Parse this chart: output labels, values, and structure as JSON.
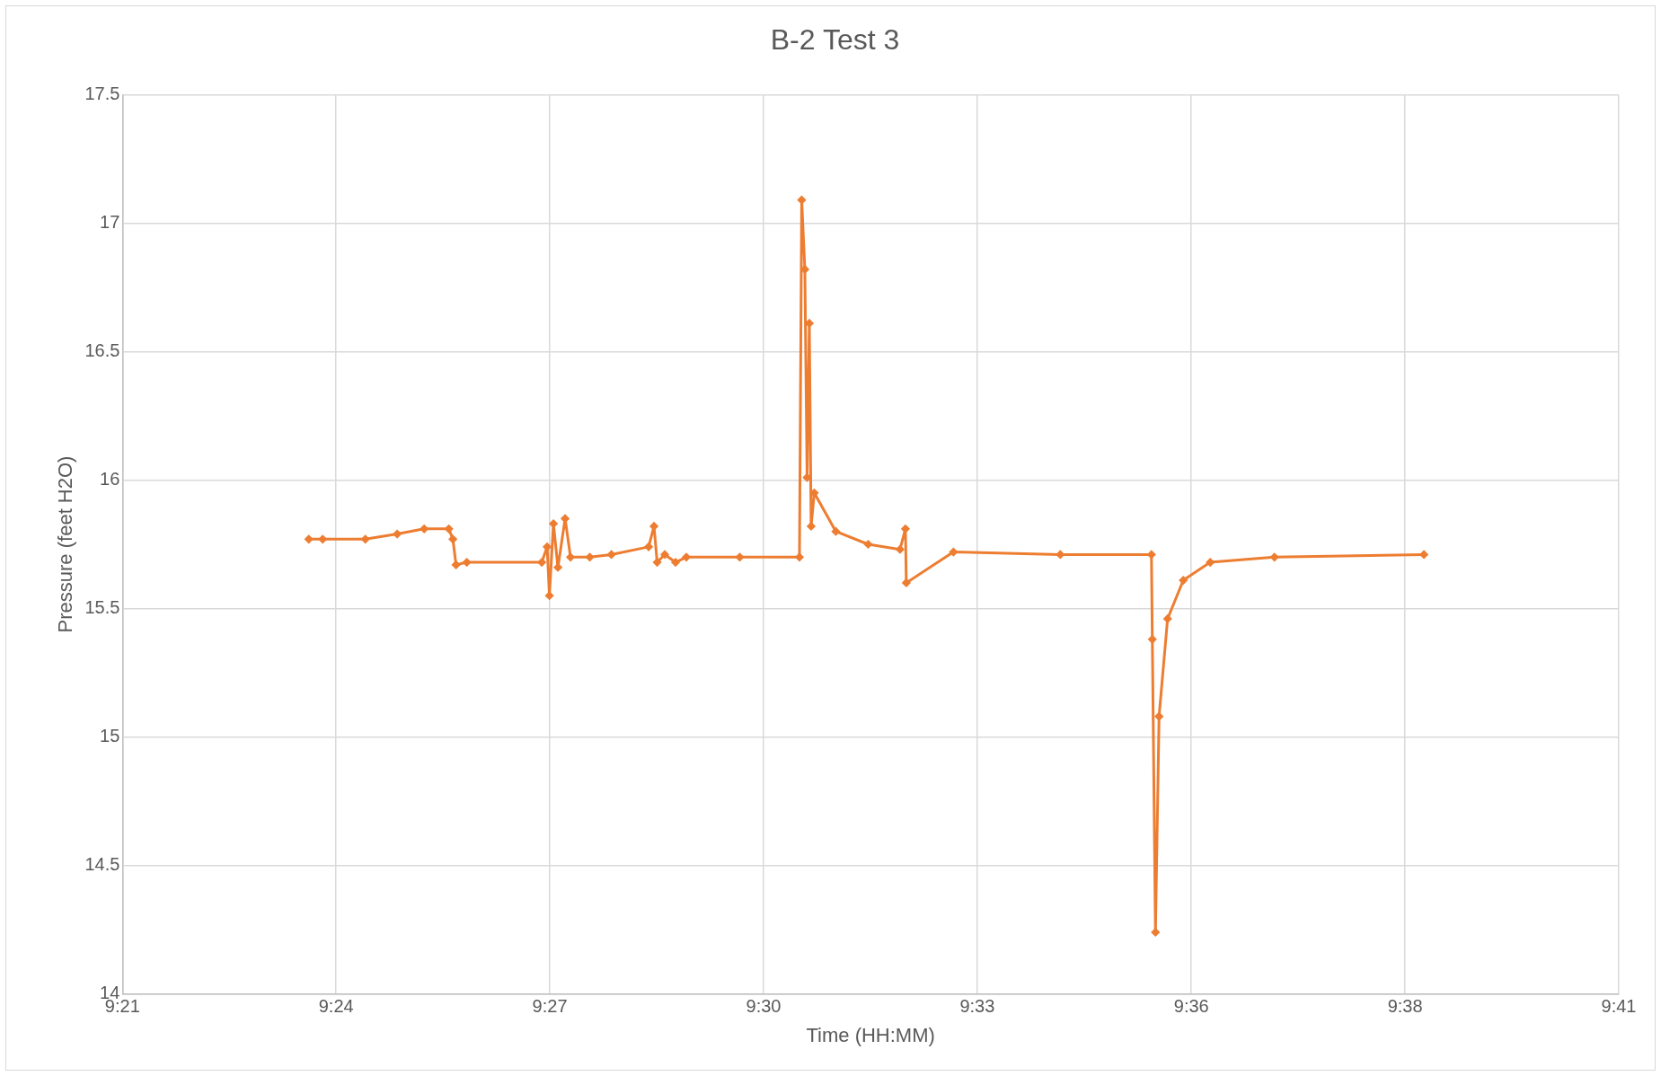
{
  "chart_data": {
    "type": "line",
    "title": "B-2 Test 3",
    "xlabel": "Time (HH:MM)",
    "ylabel": "Pressure (feet H2O)",
    "x": [
      9.3957,
      9.3988,
      9.4083,
      9.4154,
      9.4214,
      9.4269,
      9.4278,
      9.4285,
      9.4309,
      9.4476,
      9.4488,
      9.4493,
      9.4502,
      9.4512,
      9.4528,
      9.454,
      9.4583,
      9.4631,
      9.4714,
      9.4726,
      9.4733,
      9.475,
      9.4774,
      9.4798,
      9.4917,
      9.505,
      9.5055,
      9.5062,
      9.5067,
      9.5072,
      9.5076,
      9.5083,
      9.5131,
      9.5203,
      9.5274,
      9.5286,
      9.5288,
      9.5393,
      9.5631,
      9.5834,
      9.5836,
      9.5843,
      9.5851,
      9.587,
      9.5905,
      9.5965,
      9.6108,
      9.6441
    ],
    "series": [
      {
        "color": "#ed7d31",
        "values": [
          15.77,
          15.77,
          15.77,
          15.79,
          15.81,
          15.81,
          15.77,
          15.67,
          15.68,
          15.68,
          15.74,
          15.55,
          15.83,
          15.66,
          15.85,
          15.7,
          15.7,
          15.71,
          15.74,
          15.82,
          15.68,
          15.71,
          15.68,
          15.7,
          15.7,
          15.7,
          17.09,
          16.82,
          16.01,
          16.61,
          15.82,
          15.95,
          15.8,
          15.75,
          15.73,
          15.81,
          15.6,
          15.72,
          15.71,
          15.71,
          15.38,
          14.24,
          15.08,
          15.46,
          15.61,
          15.68,
          15.7,
          15.71
        ]
      }
    ],
    "xlim": [
      9.3542,
      9.6875
    ],
    "xticks": [
      {
        "value": 9.3542,
        "label": "9:21"
      },
      {
        "value": 9.4018,
        "label": "9:24"
      },
      {
        "value": 9.4494,
        "label": "9:27"
      },
      {
        "value": 9.497,
        "label": "9:30"
      },
      {
        "value": 9.5446,
        "label": "9:33"
      },
      {
        "value": 9.5923,
        "label": "9:36"
      },
      {
        "value": 9.6399,
        "label": "9:38"
      },
      {
        "value": 9.6875,
        "label": "9:41"
      }
    ],
    "ylim": [
      14,
      17.5
    ],
    "yticks": [
      14,
      14.5,
      15,
      15.5,
      16,
      16.5,
      17,
      17.5
    ],
    "grid": true,
    "legend": false,
    "marker": "diamond",
    "line_style": "solid"
  }
}
